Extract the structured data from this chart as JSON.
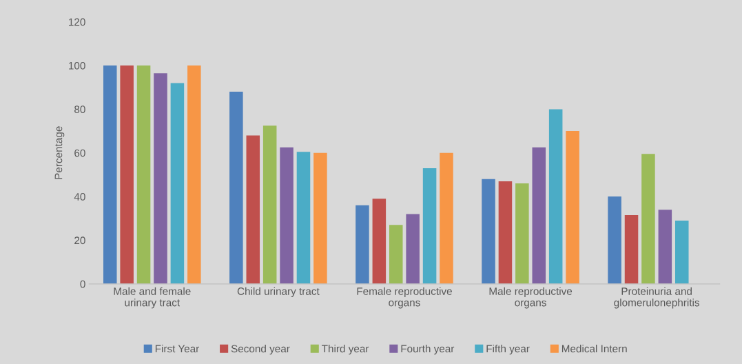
{
  "chart_data": {
    "type": "bar",
    "ylabel": "Percentage",
    "categories": [
      "Male and female\nurinary tract",
      "Child urinary tract",
      "Female reproductive\norgans",
      "Male reproductive\norgans",
      "Proteinuria and\nglomerulonephritis"
    ],
    "series": [
      {
        "name": "First Year",
        "color": "#4f81bd",
        "values": [
          100,
          88,
          36,
          48,
          40
        ]
      },
      {
        "name": "Second year",
        "color": "#c0504d",
        "values": [
          100,
          68,
          39,
          47,
          31.5
        ]
      },
      {
        "name": "Third year",
        "color": "#9bbb59",
        "values": [
          100,
          72.5,
          27,
          46,
          59.5
        ]
      },
      {
        "name": "Fourth year",
        "color": "#8064a2",
        "values": [
          96.5,
          62.5,
          32,
          62.5,
          34
        ]
      },
      {
        "name": "Fifth year",
        "color": "#4bacc6",
        "values": [
          92,
          60.5,
          53,
          80,
          29
        ]
      },
      {
        "name": "Medical Intern",
        "color": "#f79646",
        "values": [
          100,
          60,
          60,
          70,
          null
        ]
      }
    ],
    "ylim": [
      0,
      120
    ],
    "yticks": [
      0,
      20,
      40,
      60,
      80,
      100,
      120
    ],
    "grid": false,
    "legend": "bottom"
  }
}
